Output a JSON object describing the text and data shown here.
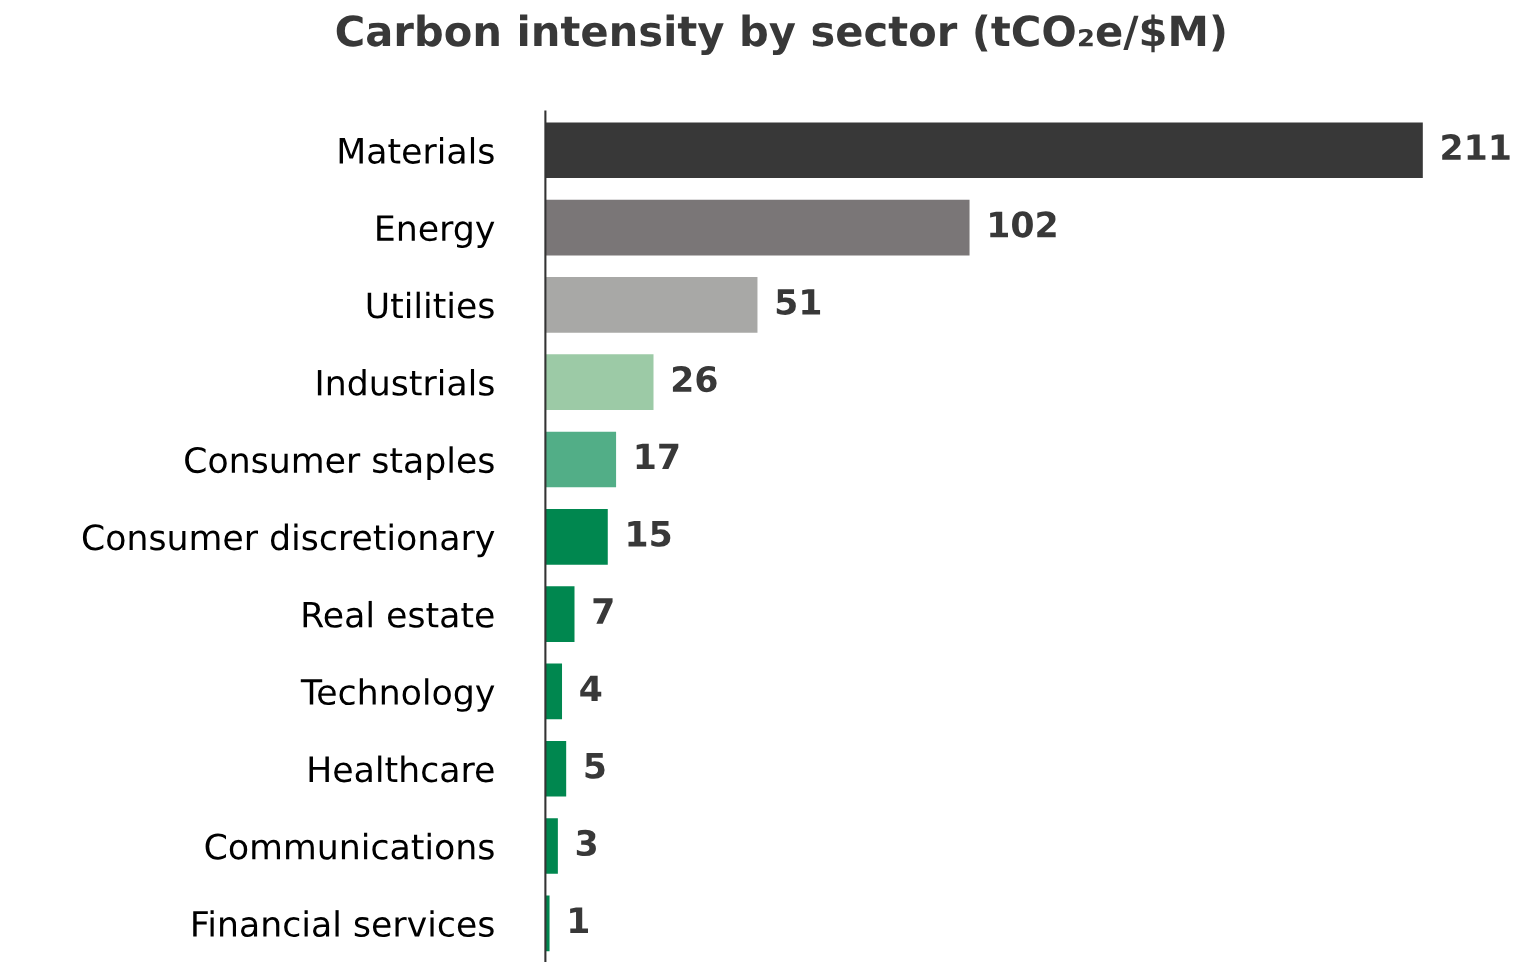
{
  "chart_data": {
    "type": "bar",
    "orientation": "horizontal",
    "title": "Carbon intensity by sector (tCO₂e/$M)",
    "categories": [
      "Materials",
      "Energy",
      "Utilities",
      "Industrials",
      "Consumer staples",
      "Consumer discretionary",
      "Real estate",
      "Technology",
      "Healthcare",
      "Communications",
      "Financial services"
    ],
    "values": [
      211,
      102,
      51,
      26,
      17,
      15,
      7,
      4,
      5,
      3,
      1
    ],
    "colors": [
      "#383838",
      "#7a7677",
      "#a8a8a6",
      "#9ccaa6",
      "#52ae87",
      "#00874f",
      "#00874f",
      "#00874f",
      "#00874f",
      "#00874f",
      "#00874f"
    ],
    "data_labels": true,
    "grid": false,
    "legend": false
  }
}
